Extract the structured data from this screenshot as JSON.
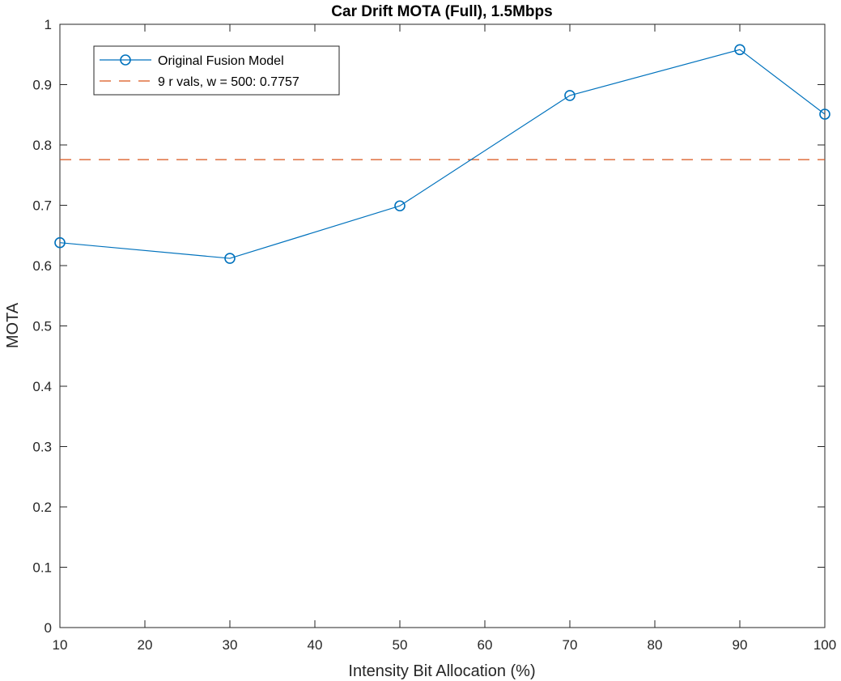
{
  "chart_data": {
    "type": "line",
    "title": "Car Drift MOTA (Full), 1.5Mbps",
    "xlabel": "Intensity Bit Allocation (%)",
    "ylabel": "MOTA",
    "xlim": [
      10,
      100
    ],
    "ylim": [
      0,
      1
    ],
    "xticks": [
      10,
      20,
      30,
      40,
      50,
      60,
      70,
      80,
      90,
      100
    ],
    "yticks": [
      0,
      0.1,
      0.2,
      0.3,
      0.4,
      0.5,
      0.6,
      0.7,
      0.8,
      0.9,
      1
    ],
    "ytick_labels": [
      "0",
      "0.1",
      "0.2",
      "0.3",
      "0.4",
      "0.5",
      "0.6",
      "0.7",
      "0.8",
      "0.9",
      "1"
    ],
    "grid": false,
    "legend_position": "top-left",
    "series": [
      {
        "name": "Original Fusion Model",
        "style": "solid-line-circle-markers",
        "color": "#0072BD",
        "x": [
          10,
          30,
          50,
          70,
          90,
          100
        ],
        "y": [
          0.638,
          0.612,
          0.699,
          0.882,
          0.958,
          0.851
        ]
      },
      {
        "name": "9 r vals, w = 500: 0.7757",
        "style": "dashed-horizontal",
        "color": "#D95319",
        "value": 0.7757
      }
    ]
  }
}
